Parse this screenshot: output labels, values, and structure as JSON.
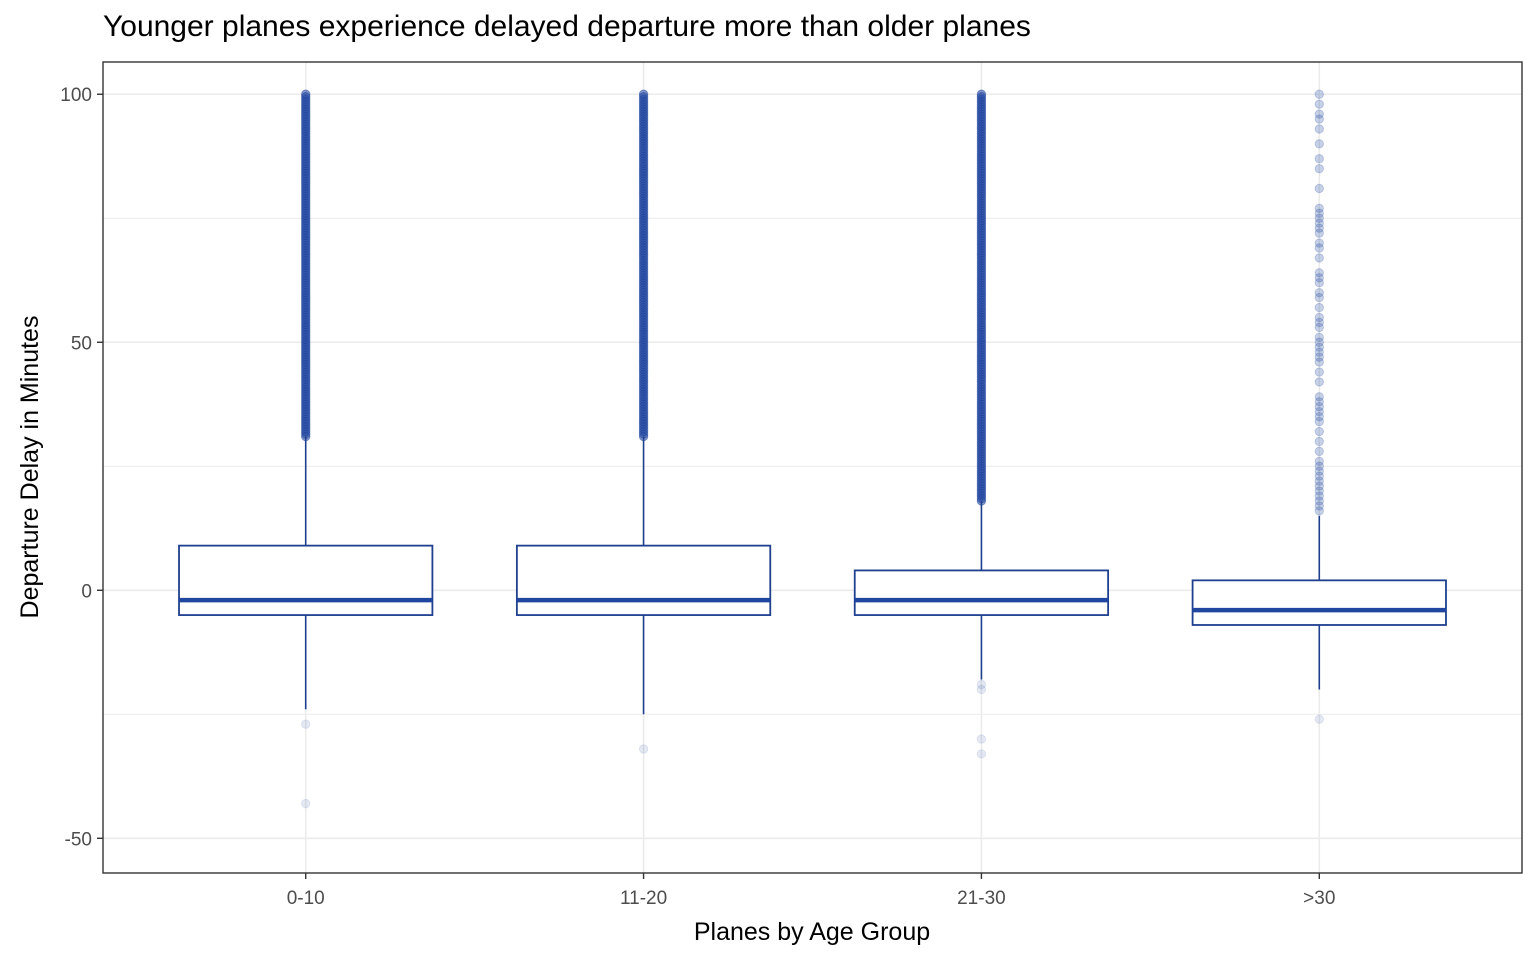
{
  "chart_data": {
    "type": "boxplot",
    "title": "Younger planes experience delayed departure more than older planes",
    "xlabel": "Planes by Age Group",
    "ylabel": "Departure Delay in Minutes",
    "ylim": [
      -57,
      106.5
    ],
    "yticks": [
      -50,
      0,
      50,
      100
    ],
    "grid": true,
    "colors": {
      "box": "#1f3f8f",
      "median": "#2146a0",
      "outlier": "#2146a0",
      "grid": "#ebebeb",
      "panel_border": "#333333"
    },
    "categories": [
      "0-10",
      "11-20",
      "21-30",
      ">30"
    ],
    "boxes": [
      {
        "category": "0-10",
        "whisker_low": -24,
        "q1": -5,
        "median": -2,
        "q3": 9,
        "whisker_high": 31,
        "outliers_high_range": [
          31,
          100
        ],
        "outliers_low": [
          -27,
          -43
        ]
      },
      {
        "category": "11-20",
        "whisker_low": -25,
        "q1": -5,
        "median": -2,
        "q3": 9,
        "whisker_high": 31,
        "outliers_high_range": [
          31,
          100
        ],
        "outliers_low": [
          -32
        ]
      },
      {
        "category": "21-30",
        "whisker_low": -18,
        "q1": -5,
        "median": -2,
        "q3": 4,
        "whisker_high": 18,
        "outliers_high_range": [
          18,
          100
        ],
        "outliers_low": [
          -19,
          -20,
          -30,
          -33
        ]
      },
      {
        "category": ">30",
        "whisker_low": -20,
        "q1": -7,
        "median": -4,
        "q3": 2,
        "whisker_high": 15,
        "outliers_high": [
          16,
          17,
          18,
          19,
          20,
          21,
          22,
          23,
          24,
          25,
          26,
          28,
          30,
          32,
          34,
          35,
          36,
          37,
          38,
          39,
          42,
          44,
          46,
          47,
          48,
          49,
          50,
          51,
          53,
          54,
          55,
          57,
          59,
          60,
          62,
          63,
          64,
          67,
          69,
          70,
          72,
          73,
          74,
          75,
          76,
          77,
          81,
          85,
          87,
          90,
          93,
          95,
          96,
          98,
          100
        ],
        "outliers_low": [
          -26
        ]
      }
    ]
  }
}
